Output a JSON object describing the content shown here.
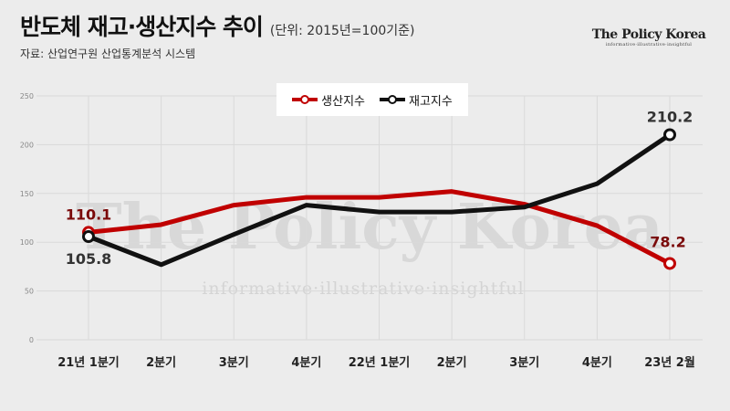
{
  "header": {
    "title": "반도체 재고·생산지수 추이",
    "unit": "(단위: 2015년=100기준)",
    "source": "자료: 산업연구원 산업통계분석 시스템"
  },
  "brand": {
    "name": "The Policy Korea",
    "tagline": "informative·illustrative·insightful"
  },
  "watermark": {
    "name": "The Policy Korea",
    "tagline": "informative·illustrative·insightful"
  },
  "chart_data": {
    "type": "line",
    "categories": [
      "21년 1분기",
      "2분기",
      "3분기",
      "4분기",
      "22년 1분기",
      "2분기",
      "3분기",
      "4분기",
      "23년 2월"
    ],
    "ylim": [
      0,
      250
    ],
    "yticks": [
      0,
      50,
      100,
      150,
      200,
      250
    ],
    "grid": true,
    "legend_position": "top-center",
    "series": [
      {
        "name": "생산지수",
        "color": "#c00000",
        "values": [
          110.1,
          118,
          138,
          146,
          146,
          152,
          139,
          117,
          78.2
        ],
        "labels": [
          {
            "index": 0,
            "text": "110.1",
            "position": "above"
          },
          {
            "index": 8,
            "text": "78.2",
            "position": "above-left"
          }
        ]
      },
      {
        "name": "재고지수",
        "color": "#111111",
        "values": [
          105.8,
          77,
          108,
          138,
          131,
          131,
          136,
          160,
          210.2
        ],
        "labels": [
          {
            "index": 0,
            "text": "105.8",
            "position": "below"
          },
          {
            "index": 8,
            "text": "210.2",
            "position": "above"
          }
        ]
      }
    ]
  }
}
